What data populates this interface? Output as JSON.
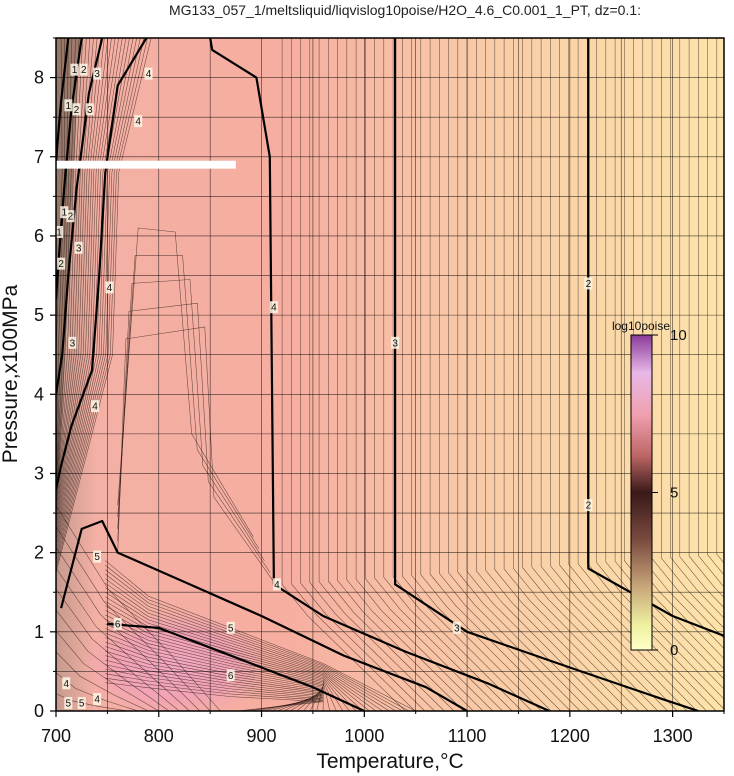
{
  "chart_data": {
    "type": "heatmap",
    "title": "MG133_057_1/meltsliquid/liqvislog10poise/H2O_4.6_C0.001_1_PT, dz=0.1:",
    "xlabel": "Temperature,°C",
    "ylabel": "Pressure,x100MPa",
    "xlim": [
      700,
      1350
    ],
    "ylim": [
      0,
      8.5
    ],
    "x_ticks": [
      "700",
      "800",
      "900",
      "1000",
      "1100",
      "1200",
      "1300"
    ],
    "y_ticks": [
      "0",
      "1",
      "2",
      "3",
      "4",
      "5",
      "6",
      "7",
      "8"
    ],
    "grid": true,
    "colorbar": {
      "title": "log10poise",
      "range": [
        0,
        10
      ],
      "ticks": [
        "0",
        "5",
        "10"
      ]
    },
    "contour_interval": 0.1,
    "major_contours": [
      {
        "level": 2,
        "points": [
          [
            1218,
            8.5
          ],
          [
            1218,
            1.8
          ],
          [
            1300,
            1.2
          ],
          [
            1350,
            0.95
          ]
        ]
      },
      {
        "level": 3,
        "points": [
          [
            1030,
            8.5
          ],
          [
            1030,
            1.6
          ],
          [
            1100,
            1.0
          ],
          [
            1200,
            0.55
          ],
          [
            1290,
            0.15
          ],
          [
            1325,
            0.0
          ]
        ]
      },
      {
        "level": 4,
        "points": [
          [
            850,
            8.5
          ],
          [
            852,
            8.35
          ],
          [
            895,
            8.0
          ],
          [
            908,
            7.0
          ],
          [
            912,
            1.6
          ],
          [
            960,
            1.2
          ],
          [
            1040,
            0.75
          ],
          [
            1120,
            0.35
          ],
          [
            1180,
            0.0
          ]
        ]
      },
      {
        "level": 5,
        "points": [
          [
            705,
            1.3
          ],
          [
            725,
            2.3
          ],
          [
            745,
            2.4
          ],
          [
            760,
            2.0
          ],
          [
            830,
            1.6
          ],
          [
            900,
            1.2
          ],
          [
            980,
            0.7
          ],
          [
            1060,
            0.3
          ],
          [
            1100,
            0.0
          ]
        ]
      },
      {
        "level": 6,
        "points": [
          [
            750,
            1.1
          ],
          [
            800,
            1.05
          ],
          [
            850,
            0.8
          ],
          [
            900,
            0.55
          ],
          [
            950,
            0.3
          ],
          [
            1000,
            0.0
          ]
        ]
      },
      {
        "level": 4,
        "points": [
          [
            788,
            8.5
          ],
          [
            760,
            7.9
          ],
          [
            748,
            6.8
          ],
          [
            742,
            5.5
          ],
          [
            735,
            4.3
          ],
          [
            715,
            3.6
          ],
          [
            705,
            3.1
          ],
          [
            700,
            2.8
          ]
        ]
      },
      {
        "level": 3,
        "points": [
          [
            745,
            8.5
          ],
          [
            732,
            7.8
          ],
          [
            720,
            6.6
          ],
          [
            712,
            5.5
          ],
          [
            706,
            4.5
          ],
          [
            700,
            4.0
          ]
        ]
      },
      {
        "level": 2,
        "points": [
          [
            725,
            8.5
          ],
          [
            715,
            7.6
          ],
          [
            708,
            6.6
          ],
          [
            702,
            5.6
          ],
          [
            700,
            5.2
          ]
        ]
      },
      {
        "level": 1,
        "points": [
          [
            712,
            8.5
          ],
          [
            705,
            7.7
          ],
          [
            701,
            7.1
          ],
          [
            700,
            6.9
          ]
        ]
      }
    ],
    "contour_labels": [
      {
        "text": "2",
        "x": 1218,
        "y": 5.4
      },
      {
        "text": "2",
        "x": 1218,
        "y": 2.6
      },
      {
        "text": "3",
        "x": 1030,
        "y": 4.65
      },
      {
        "text": "3",
        "x": 1090,
        "y": 1.05
      },
      {
        "text": "4",
        "x": 912,
        "y": 5.1
      },
      {
        "text": "4",
        "x": 915,
        "y": 1.6
      },
      {
        "text": "4",
        "x": 790,
        "y": 8.05
      },
      {
        "text": "4",
        "x": 780,
        "y": 7.45
      },
      {
        "text": "4",
        "x": 752,
        "y": 5.35
      },
      {
        "text": "4",
        "x": 738,
        "y": 3.85
      },
      {
        "text": "3",
        "x": 716,
        "y": 4.65
      },
      {
        "text": "3",
        "x": 740,
        "y": 8.05
      },
      {
        "text": "3",
        "x": 733,
        "y": 7.6
      },
      {
        "text": "3",
        "x": 722,
        "y": 5.85
      },
      {
        "text": "2",
        "x": 727,
        "y": 8.1
      },
      {
        "text": "2",
        "x": 720,
        "y": 7.6
      },
      {
        "text": "2",
        "x": 714,
        "y": 6.25
      },
      {
        "text": "2",
        "x": 705,
        "y": 5.65
      },
      {
        "text": "1",
        "x": 718,
        "y": 8.1
      },
      {
        "text": "1",
        "x": 712,
        "y": 7.65
      },
      {
        "text": "1",
        "x": 708,
        "y": 6.3
      },
      {
        "text": "1",
        "x": 703,
        "y": 6.05
      },
      {
        "text": "5",
        "x": 740,
        "y": 1.95
      },
      {
        "text": "5",
        "x": 870,
        "y": 1.05
      },
      {
        "text": "6",
        "x": 760,
        "y": 1.1
      },
      {
        "text": "6",
        "x": 870,
        "y": 0.45
      },
      {
        "text": "4",
        "x": 710,
        "y": 0.35
      },
      {
        "text": "4",
        "x": 740,
        "y": 0.15
      },
      {
        "text": "5",
        "x": 712,
        "y": 0.1
      },
      {
        "text": "5",
        "x": 725,
        "y": 0.1
      }
    ],
    "masked_region": {
      "x": [
        700,
        875
      ],
      "y": [
        6.85,
        6.95
      ]
    }
  }
}
